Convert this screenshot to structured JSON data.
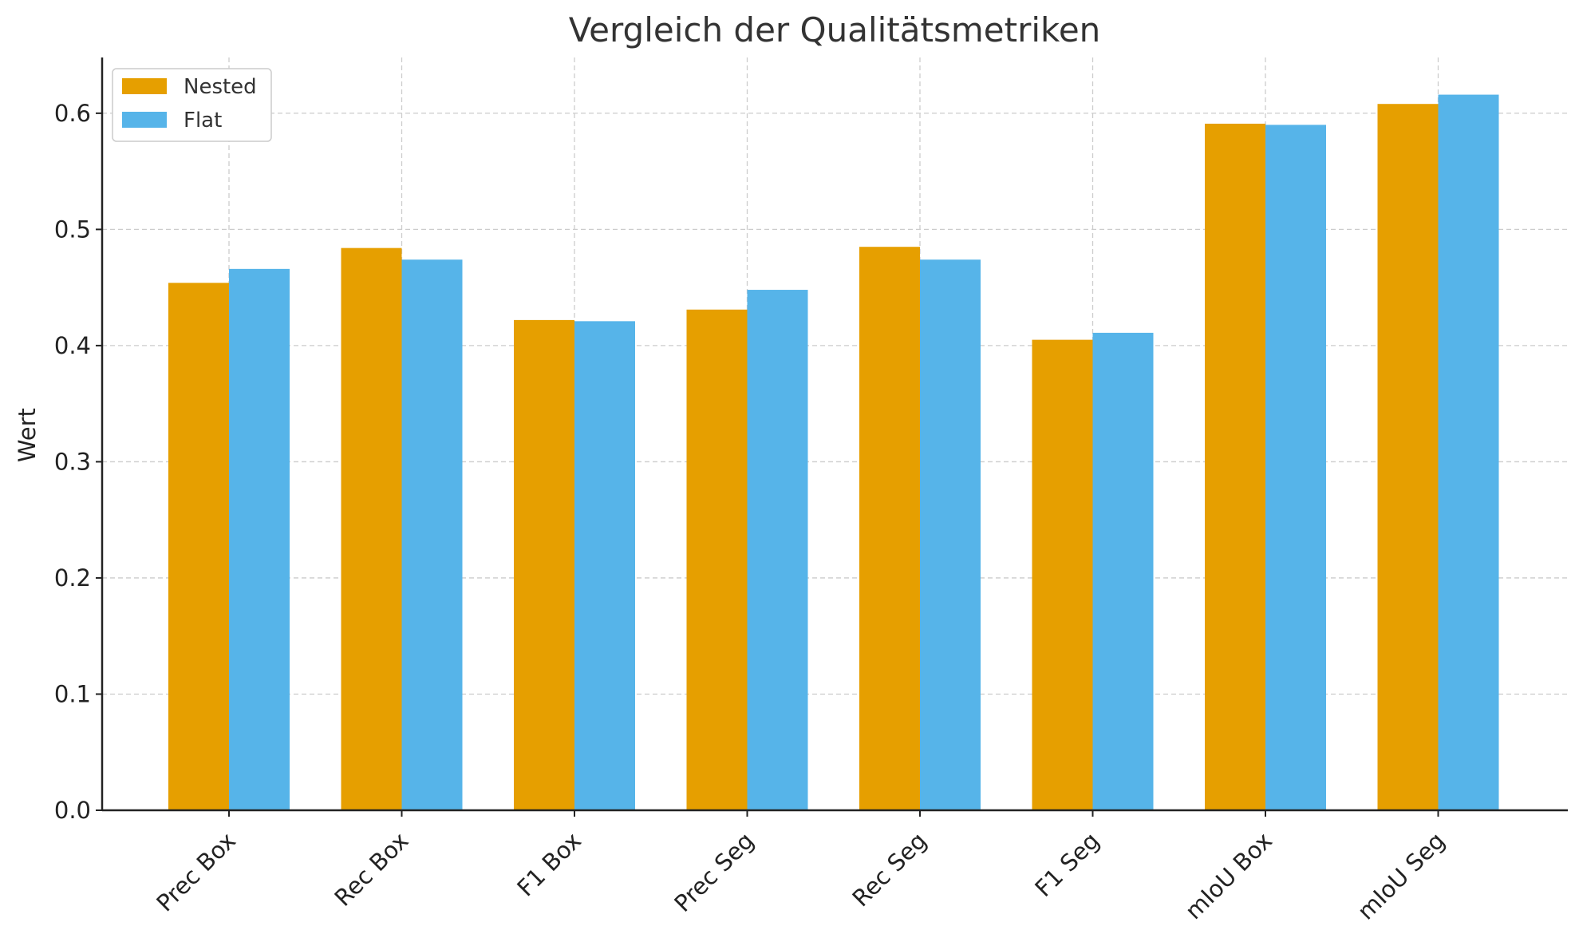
{
  "chart_data": {
    "type": "bar",
    "title": "Vergleich der Qualitätsmetriken",
    "xlabel": "",
    "ylabel": "Wert",
    "categories": [
      "Prec Box",
      "Rec Box",
      "F1 Box",
      "Prec Seg",
      "Rec Seg",
      "F1 Seg",
      "mIoU Box",
      "mIoU Seg"
    ],
    "series": [
      {
        "name": "Nested",
        "color": "#E69F00",
        "values": [
          0.454,
          0.484,
          0.422,
          0.431,
          0.485,
          0.405,
          0.591,
          0.608
        ]
      },
      {
        "name": "Flat",
        "color": "#56B4E9",
        "values": [
          0.466,
          0.474,
          0.421,
          0.448,
          0.474,
          0.411,
          0.59,
          0.616
        ]
      }
    ],
    "ylim": [
      0,
      0.648
    ],
    "yticks": [
      "0.0",
      "0.1",
      "0.2",
      "0.3",
      "0.4",
      "0.5",
      "0.6"
    ],
    "grid": true,
    "legend_position": "top-left"
  }
}
